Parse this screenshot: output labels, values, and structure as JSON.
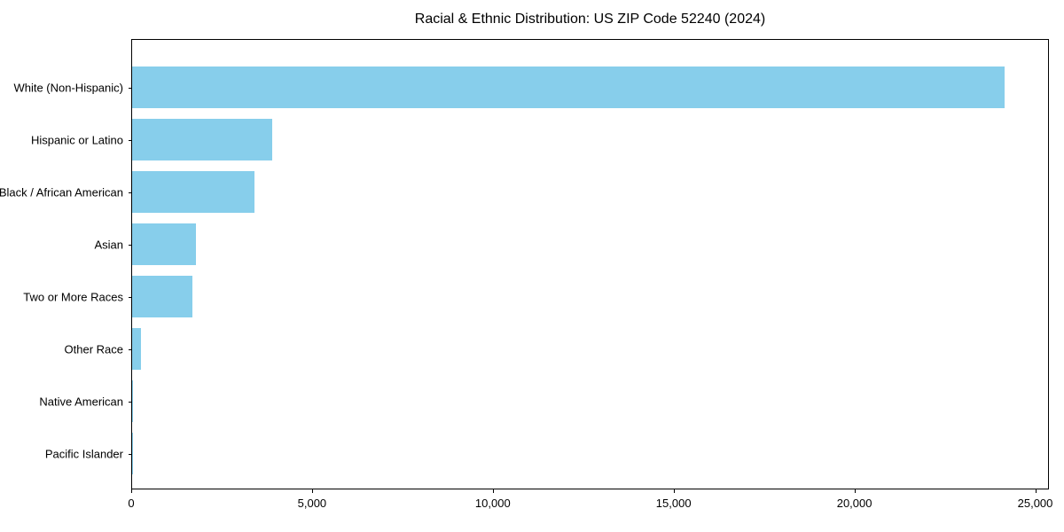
{
  "title": "Racial & Ethnic Distribution: US ZIP Code 52240 (2024)",
  "chart_data": {
    "type": "bar",
    "orientation": "horizontal",
    "title": "Racial & Ethnic Distribution: US ZIP Code 52240 (2024)",
    "categories": [
      "White (Non-Hispanic)",
      "Hispanic or Latino",
      "Black / African American",
      "Asian",
      "Two or More Races",
      "Other Race",
      "Native American",
      "Pacific Islander"
    ],
    "values": [
      24170,
      3870,
      3380,
      1780,
      1670,
      250,
      20,
      10
    ],
    "xlabel": "",
    "ylabel": "",
    "xlim": [
      0,
      25380
    ],
    "x_ticks": [
      0,
      5000,
      10000,
      15000,
      20000,
      25000
    ],
    "x_tick_labels": [
      "0",
      "5,000",
      "10,000",
      "15,000",
      "20,000",
      "25,000"
    ],
    "bar_color": "#87CEEB",
    "grid": false,
    "legend": null,
    "frame": "full-box"
  },
  "colors": {
    "bar": "#87CEEB",
    "background": "#ffffff",
    "frame": "#000000",
    "text": "#000000"
  }
}
